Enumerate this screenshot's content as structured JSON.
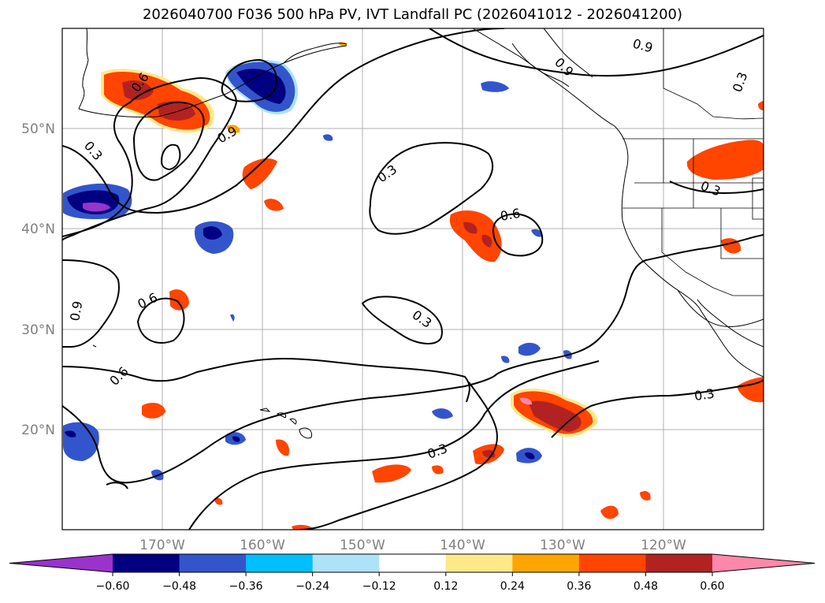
{
  "title": "2026040700 F036 500 hPa PV, IVT Landfall PC (2026041012 - 2026041200)",
  "lat_labels": [
    "50°N",
    "40°N",
    "30°N",
    "20°N"
  ],
  "lon_labels": [
    "170°W",
    "160°W",
    "150°W",
    "140°W",
    "130°W",
    "120°W"
  ],
  "contour_labels": [
    "0.9",
    "0.9",
    "0.3",
    "0.6",
    "0.9",
    "0.3",
    "0.3",
    "0.6",
    "0.9",
    "0.6",
    "0.3",
    "0.3",
    "0.6",
    "0.3",
    "0.3"
  ],
  "colorbar": {
    "ticks": [
      "−0.60",
      "−0.48",
      "−0.36",
      "−0.24",
      "−0.12",
      "0.12",
      "0.24",
      "0.36",
      "0.48",
      "0.60"
    ],
    "colors": [
      "#9933cc",
      "#000080",
      "#3355cc",
      "#00bfff",
      "#aee2f8",
      "#ffffff",
      "#ffe88a",
      "#ffa500",
      "#ff4500",
      "#b22222",
      "#ff88aa"
    ]
  },
  "map": {
    "lon_range": [
      "180°W",
      "110°W"
    ],
    "lat_range": [
      "10°N",
      "60°N"
    ],
    "gridlines": true
  }
}
